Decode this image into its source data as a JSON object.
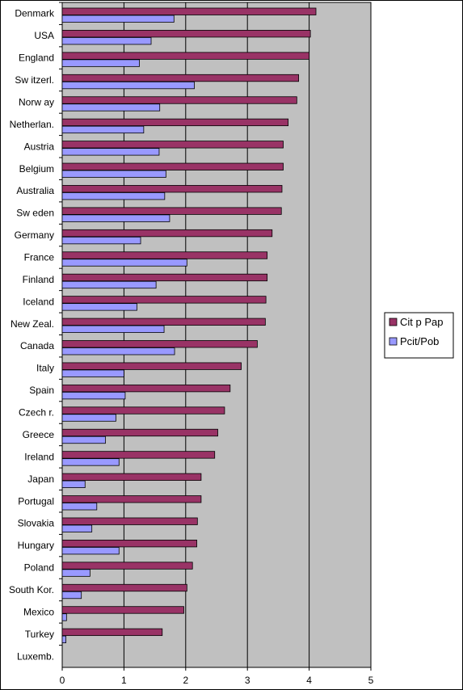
{
  "chart_data": {
    "type": "bar",
    "orientation": "horizontal",
    "categories": [
      "Denmark",
      "USA",
      "England",
      "Sw itzerl.",
      "Norw ay",
      "Netherlan.",
      "Austria",
      "Belgium",
      "Australia",
      "Sw eden",
      "Germany",
      "France",
      "Finland",
      "Iceland",
      "New Zeal.",
      "Canada",
      "Italy",
      "Spain",
      "Czech r.",
      "Greece",
      "Ireland",
      "Japan",
      "Portugal",
      "Slovakia",
      "Hungary",
      "Poland",
      "South Kor.",
      "Mexico",
      "Turkey",
      "Luxemb."
    ],
    "series": [
      {
        "name": "Cit p Pap",
        "color": "#993366",
        "values": [
          4.11,
          4.02,
          4.0,
          3.83,
          3.8,
          3.66,
          3.58,
          3.58,
          3.56,
          3.55,
          3.4,
          3.32,
          3.32,
          3.3,
          3.29,
          3.16,
          2.9,
          2.72,
          2.63,
          2.52,
          2.47,
          2.25,
          2.25,
          2.19,
          2.18,
          2.11,
          2.02,
          1.97,
          1.62,
          null
        ]
      },
      {
        "name": "Pcit/Pob",
        "color": "#9999ff",
        "values": [
          1.81,
          1.44,
          1.25,
          2.14,
          1.58,
          1.32,
          1.57,
          1.68,
          1.66,
          1.74,
          1.27,
          2.02,
          1.52,
          1.21,
          1.65,
          1.82,
          1.0,
          1.02,
          0.87,
          0.7,
          0.92,
          0.37,
          0.56,
          0.48,
          0.92,
          0.45,
          0.31,
          0.07,
          0.06,
          null
        ]
      }
    ],
    "xlim": [
      0,
      5
    ],
    "x_ticks": [
      "0",
      "1",
      "2",
      "3",
      "4",
      "5"
    ],
    "xlabel": "",
    "ylabel": "",
    "title": "",
    "grid": "vertical",
    "plot_background": "#c0c0c0",
    "legend_position": "right"
  }
}
